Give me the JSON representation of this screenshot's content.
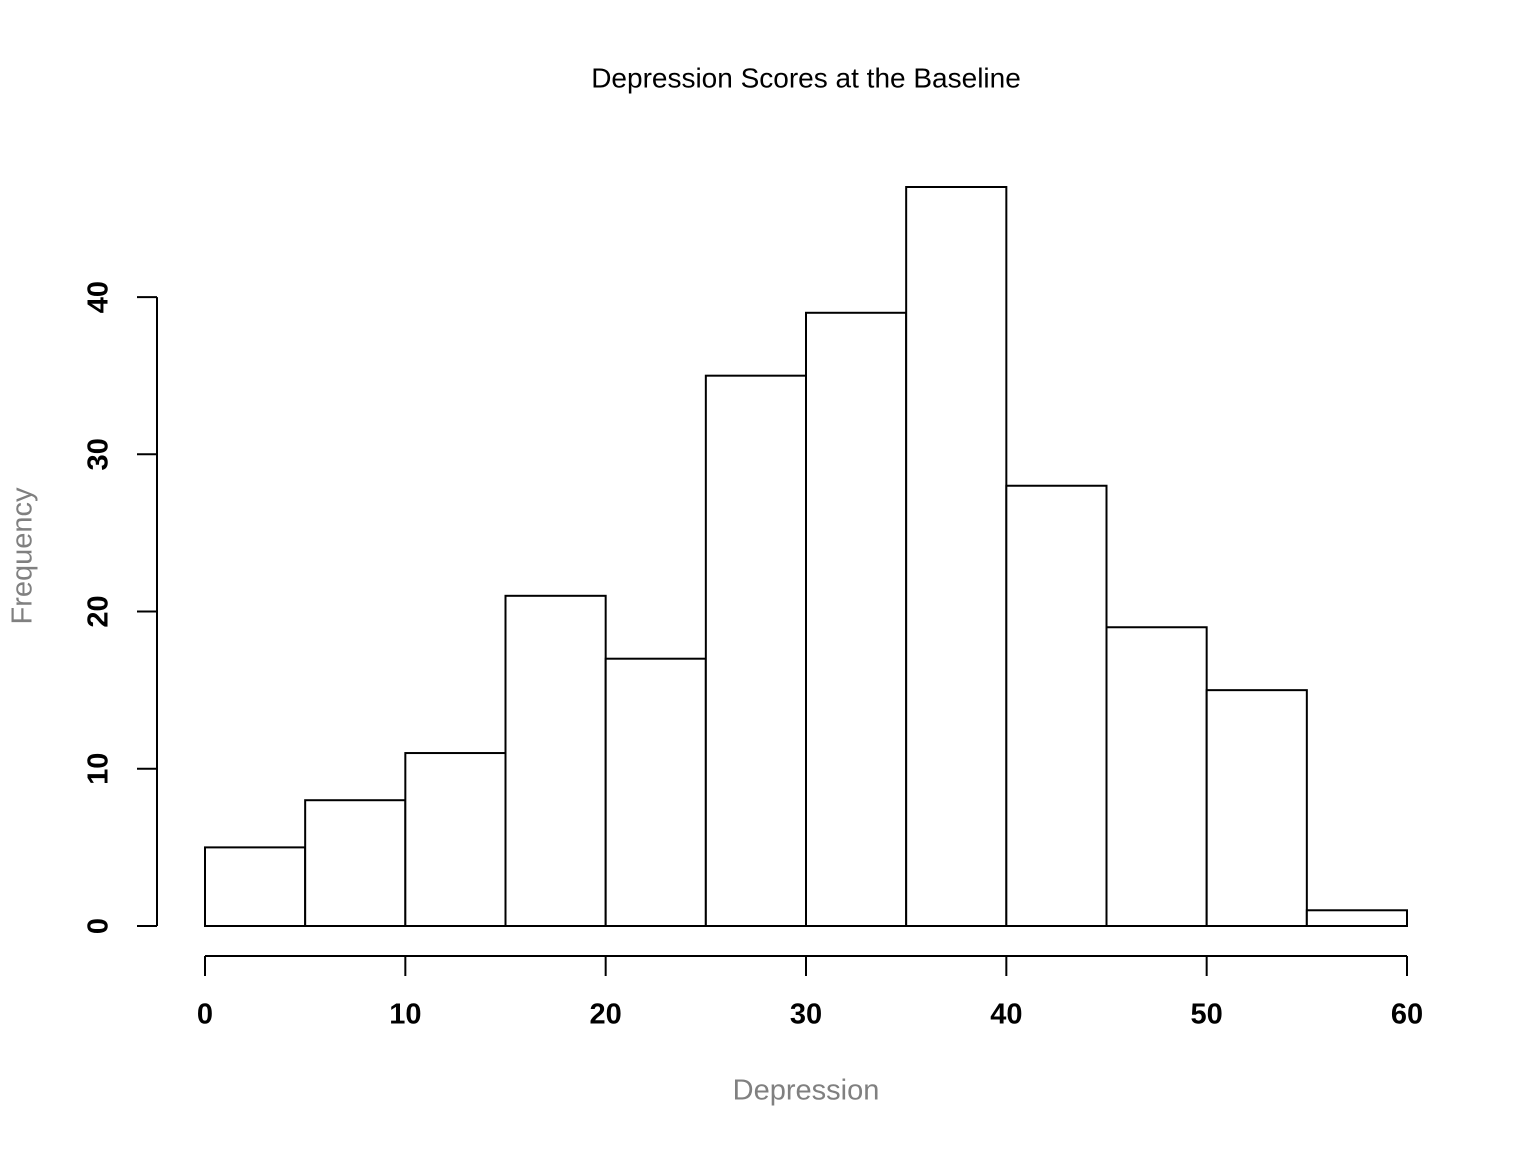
{
  "chart_data": {
    "type": "histogram",
    "title": "Depression Scores at the Baseline",
    "x_label": "Depression",
    "y_label": "Frequency",
    "bins": [
      0,
      5,
      10,
      15,
      20,
      25,
      30,
      35,
      40,
      45,
      50,
      55,
      60
    ],
    "values": [
      5,
      8,
      11,
      21,
      17,
      35,
      39,
      47,
      28,
      19,
      15,
      1
    ],
    "color": "#ffffff",
    "edgecolor": "#000000",
    "xlim": [
      0,
      60
    ],
    "ylim": [
      0,
      47
    ],
    "xticks": [
      0,
      10,
      20,
      30,
      40,
      50,
      60
    ],
    "yticks": [
      0,
      10,
      20,
      30,
      40
    ]
  }
}
